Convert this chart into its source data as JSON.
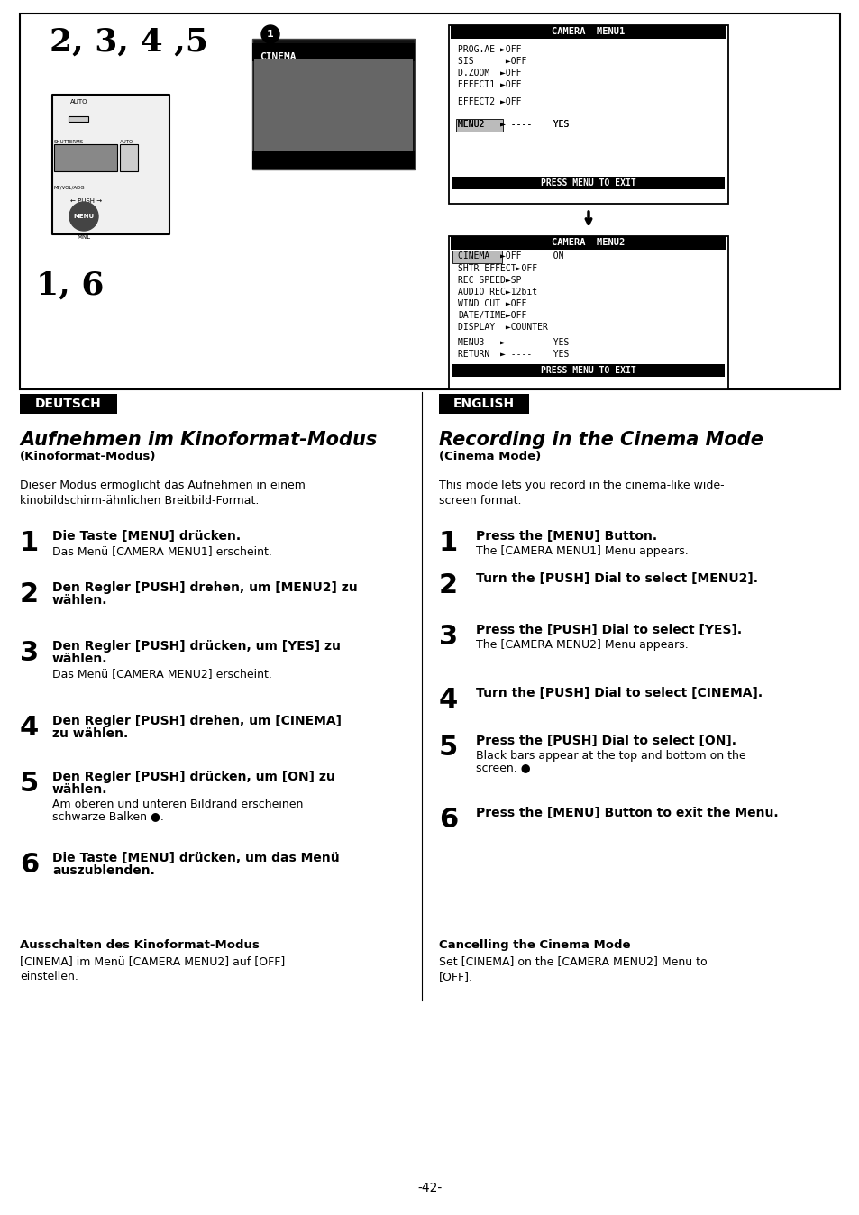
{
  "page_bg": "#ffffff",
  "deutsch_label": "DEUTSCH",
  "english_label": "ENGLISH",
  "de_title": "Aufnehmen im Kinoformat-Modus",
  "de_subtitle": "(Kinoformat-Modus)",
  "en_title": "Recording in the Cinema Mode",
  "en_subtitle": "(Cinema Mode)",
  "de_intro": "Dieser Modus ermöglicht das Aufnehmen in einem\nkinobildschirm-ähnlichen Breitbild-Format.",
  "en_intro": "This mode lets you record in the cinema-like wide-\nscreen format.",
  "de_steps": [
    {
      "num": "1",
      "bold": "Die Taste [MENU] drücken.",
      "normal": "Das Menü [CAMERA MENU1] erscheint."
    },
    {
      "num": "2",
      "bold": "Den Regler [PUSH] drehen, um [MENU2] zu\nwählen.",
      "normal": ""
    },
    {
      "num": "3",
      "bold": "Den Regler [PUSH] drücken, um [YES] zu\nwählen.",
      "normal": "Das Menü [CAMERA MENU2] erscheint."
    },
    {
      "num": "4",
      "bold": "Den Regler [PUSH] drehen, um [CINEMA]\nzu wählen.",
      "normal": ""
    },
    {
      "num": "5",
      "bold": "Den Regler [PUSH] drücken, um [ON] zu\nwählen.",
      "normal": "Am oberen und unteren Bildrand erscheinen\nschwarze Balken ①."
    },
    {
      "num": "6",
      "bold": "Die Taste [MENU] drücken, um das Menü\nauszublenden.",
      "normal": ""
    }
  ],
  "en_steps": [
    {
      "num": "1",
      "bold": "Press the [MENU] Button.",
      "normal": "The [CAMERA MENU1] Menu appears."
    },
    {
      "num": "2",
      "bold": "Turn the [PUSH] Dial to select [MENU2].",
      "normal": ""
    },
    {
      "num": "3",
      "bold": "Press the [PUSH] Dial to select [YES].",
      "normal": "The [CAMERA MENU2] Menu appears."
    },
    {
      "num": "4",
      "bold": "Turn the [PUSH] Dial to select [CINEMA].",
      "normal": ""
    },
    {
      "num": "5",
      "bold": "Press the [PUSH] Dial to select [ON].",
      "normal": "Black bars appear at the top and bottom on the\nscreen. ①"
    },
    {
      "num": "6",
      "bold": "Press the [MENU] Button to exit the Menu.",
      "normal": ""
    }
  ],
  "de_footer_title": "Ausschalten des Kinoformat-Modus",
  "de_footer_text": "[CINEMA] im Menü [CAMERA MENU2] auf [OFF]\neinstellen.",
  "en_footer_title": "Cancelling the Cinema Mode",
  "en_footer_text": "Set [CINEMA] on the [CAMERA MENU2] Menu to\n[OFF].",
  "page_number": "-42-"
}
